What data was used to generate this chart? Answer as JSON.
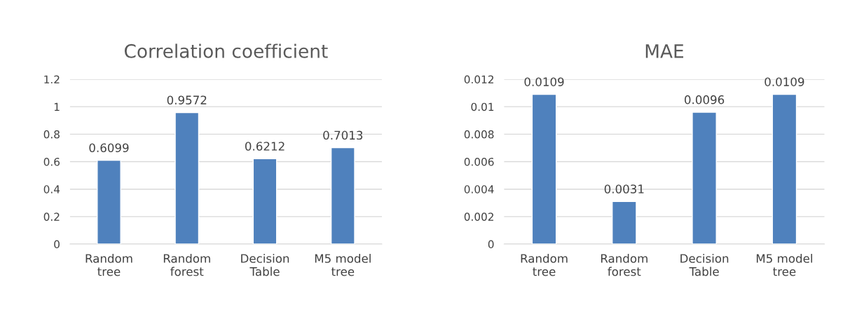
{
  "chart_data": [
    {
      "type": "bar",
      "title": "Correlation coefficient",
      "categories": [
        "Random\ntree",
        "Random\nforest",
        "Decision\nTable",
        "M5 model\ntree"
      ],
      "values": [
        0.6099,
        0.9572,
        0.6212,
        0.7013
      ],
      "color": "#4f81bd",
      "ylim": [
        0,
        1.2
      ],
      "yticks": [
        0,
        0.2,
        0.4,
        0.6,
        0.8,
        1,
        1.2
      ],
      "grid": "y",
      "data_labels": true
    },
    {
      "type": "bar",
      "title": "MAE",
      "categories": [
        "Random\ntree",
        "Random\nforest",
        "Decision\nTable",
        "M5 model\ntree"
      ],
      "values": [
        0.0109,
        0.0031,
        0.0096,
        0.0109
      ],
      "color": "#4f81bd",
      "ylim": [
        0,
        0.012
      ],
      "yticks": [
        0,
        0.002,
        0.004,
        0.006,
        0.008,
        0.01,
        0.012
      ],
      "grid": "y",
      "data_labels": true
    }
  ]
}
